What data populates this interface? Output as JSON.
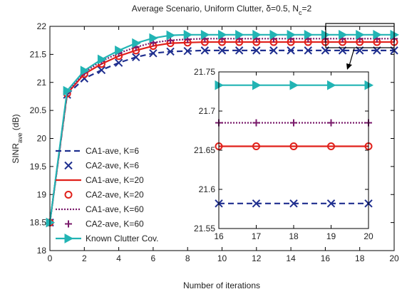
{
  "chart_data": [
    {
      "type": "line",
      "title": [
        "Average Scenario, Uniform Clutter, δ=0.5, N",
        "c",
        "=2"
      ],
      "xlabel": "Number of iterations",
      "ylabel": [
        "SINR",
        "ave",
        " (dB)"
      ],
      "xlim": [
        0,
        20
      ],
      "ylim": [
        18,
        22
      ],
      "xticks": [
        0,
        2,
        4,
        6,
        8,
        10,
        12,
        14,
        16,
        18,
        20
      ],
      "yticks": [
        18,
        18.5,
        19,
        19.5,
        20,
        20.5,
        21,
        21.5,
        22
      ],
      "x": [
        0,
        1,
        2,
        3,
        4,
        5,
        6,
        7,
        8,
        9,
        10,
        11,
        12,
        13,
        14,
        15,
        16,
        17,
        18,
        19,
        20
      ],
      "series": [
        {
          "name": "CA1-ave, K=6",
          "color": "#1f2f8f",
          "linestyle": "dashed",
          "marker": null,
          "values": [
            18.5,
            20.78,
            21.07,
            21.22,
            21.35,
            21.45,
            21.52,
            21.55,
            21.56,
            21.57,
            21.57,
            21.57,
            21.57,
            21.57,
            21.57,
            21.57,
            21.57,
            21.57,
            21.57,
            21.57,
            21.57
          ]
        },
        {
          "name": "CA2-ave, K=6",
          "color": "#1f2f8f",
          "linestyle": null,
          "marker": "x",
          "values": [
            18.5,
            20.78,
            21.07,
            21.22,
            21.35,
            21.45,
            21.52,
            21.55,
            21.56,
            21.57,
            21.57,
            21.57,
            21.57,
            21.57,
            21.57,
            21.57,
            21.57,
            21.57,
            21.57,
            21.57,
            21.57
          ]
        },
        {
          "name": "CA1-ave, K=20",
          "color": "#e0201a",
          "linestyle": "solid",
          "marker": null,
          "values": [
            18.5,
            20.8,
            21.15,
            21.33,
            21.47,
            21.57,
            21.65,
            21.7,
            21.71,
            21.72,
            21.72,
            21.72,
            21.72,
            21.72,
            21.72,
            21.72,
            21.72,
            21.72,
            21.72,
            21.72,
            21.72
          ]
        },
        {
          "name": "CA2-ave, K=20",
          "color": "#e0201a",
          "linestyle": null,
          "marker": "o",
          "values": [
            18.5,
            20.8,
            21.15,
            21.33,
            21.47,
            21.57,
            21.65,
            21.7,
            21.71,
            21.72,
            21.72,
            21.72,
            21.72,
            21.72,
            21.72,
            21.72,
            21.72,
            21.72,
            21.72,
            21.72,
            21.72
          ]
        },
        {
          "name": "CA1-ave, K=60",
          "color": "#7a1a6b",
          "linestyle": "dotted",
          "marker": null,
          "values": [
            18.5,
            20.82,
            21.18,
            21.38,
            21.52,
            21.63,
            21.71,
            21.75,
            21.77,
            21.78,
            21.78,
            21.78,
            21.78,
            21.78,
            21.78,
            21.78,
            21.78,
            21.78,
            21.78,
            21.78,
            21.78
          ]
        },
        {
          "name": "CA2-ave, K=60",
          "color": "#7a1a6b",
          "linestyle": null,
          "marker": "+",
          "values": [
            18.5,
            20.82,
            21.18,
            21.38,
            21.52,
            21.63,
            21.71,
            21.75,
            21.77,
            21.78,
            21.78,
            21.78,
            21.78,
            21.78,
            21.78,
            21.78,
            21.78,
            21.78,
            21.78,
            21.78,
            21.78
          ]
        },
        {
          "name": "Known Clutter Cov.",
          "color": "#22b4b4",
          "linestyle": "solid",
          "marker": ">",
          "values": [
            18.5,
            20.85,
            21.21,
            21.41,
            21.57,
            21.7,
            21.79,
            21.84,
            21.85,
            21.85,
            21.85,
            21.85,
            21.85,
            21.85,
            21.85,
            21.85,
            21.85,
            21.85,
            21.85,
            21.85,
            21.85
          ]
        }
      ]
    },
    {
      "type": "line",
      "xlim": [
        16,
        20
      ],
      "ylim": [
        21.55,
        21.75
      ],
      "xticks": [
        16,
        17,
        18,
        19,
        20
      ],
      "yticks": [
        21.55,
        21.6,
        21.65,
        21.7,
        21.75
      ],
      "x": [
        16,
        17,
        18,
        19,
        20
      ],
      "series": [
        {
          "color": "#1f2f8f",
          "linestyle": "dashed",
          "marker": "x",
          "values": [
            21.582,
            21.582,
            21.582,
            21.582,
            21.582
          ]
        },
        {
          "color": "#e0201a",
          "linestyle": "solid",
          "marker": "o",
          "values": [
            21.655,
            21.655,
            21.655,
            21.655,
            21.655
          ]
        },
        {
          "color": "#7a1a6b",
          "linestyle": "dotted",
          "marker": "+",
          "values": [
            21.685,
            21.685,
            21.685,
            21.685,
            21.685
          ]
        },
        {
          "color": "#22b4b4",
          "linestyle": "solid",
          "marker": ">",
          "values": [
            21.733,
            21.733,
            21.733,
            21.733,
            21.733
          ]
        }
      ]
    }
  ]
}
